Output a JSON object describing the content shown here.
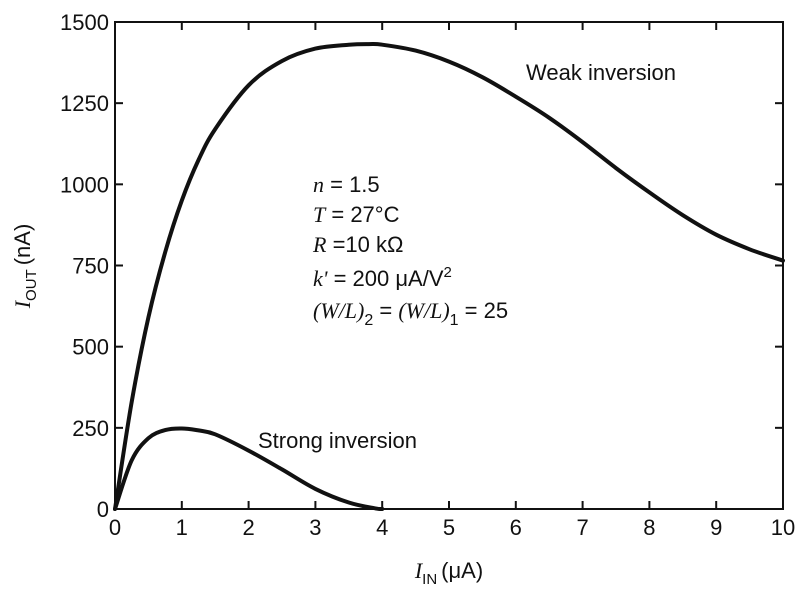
{
  "chart_data": {
    "type": "line",
    "xlabel": {
      "symbol": "I",
      "subscript": "IN",
      "unit": "(μA)"
    },
    "ylabel": {
      "symbol": "I",
      "subscript": "OUT",
      "unit": "(nA)"
    },
    "xlim": [
      0,
      10
    ],
    "ylim": [
      0,
      1500
    ],
    "xticks": [
      "0",
      "1",
      "2",
      "3",
      "4",
      "5",
      "6",
      "7",
      "8",
      "9",
      "10"
    ],
    "yticks": [
      "0",
      "250",
      "500",
      "750",
      "1000",
      "1250",
      "1500"
    ],
    "grid": false,
    "series": [
      {
        "name": "Weak inversion",
        "x": [
          0,
          0.25,
          0.5,
          0.75,
          1,
          1.25,
          1.5,
          2,
          2.5,
          3,
          3.5,
          3.8,
          4,
          4.5,
          5,
          5.5,
          6,
          6.5,
          7,
          7.5,
          8,
          8.5,
          9,
          9.5,
          10
        ],
        "y": [
          0,
          330,
          590,
          790,
          950,
          1075,
          1170,
          1305,
          1380,
          1418,
          1430,
          1432,
          1430,
          1412,
          1378,
          1330,
          1270,
          1205,
          1130,
          1050,
          975,
          905,
          845,
          800,
          765
        ]
      },
      {
        "name": "Strong inversion",
        "x": [
          0,
          0.25,
          0.5,
          0.75,
          1,
          1.25,
          1.5,
          2,
          2.5,
          3,
          3.5,
          3.9,
          4
        ],
        "y": [
          0,
          150,
          218,
          243,
          248,
          242,
          230,
          180,
          122,
          62,
          20,
          2,
          0
        ]
      }
    ],
    "annotations": {
      "n": {
        "sym": "n",
        "text": " = 1.5"
      },
      "T": {
        "sym": "T",
        "text": " = 27°C"
      },
      "R": {
        "sym": "R",
        "text": " =10 kΩ"
      },
      "k": {
        "sym": "k'",
        "text": " = 200 μA/V",
        "sup": "2"
      },
      "wl": {
        "a": "(W/L)",
        "a_sub": "2",
        "b": " = ",
        "c": "(W/L)",
        "c_sub": "1",
        "d": " = 25"
      }
    }
  }
}
